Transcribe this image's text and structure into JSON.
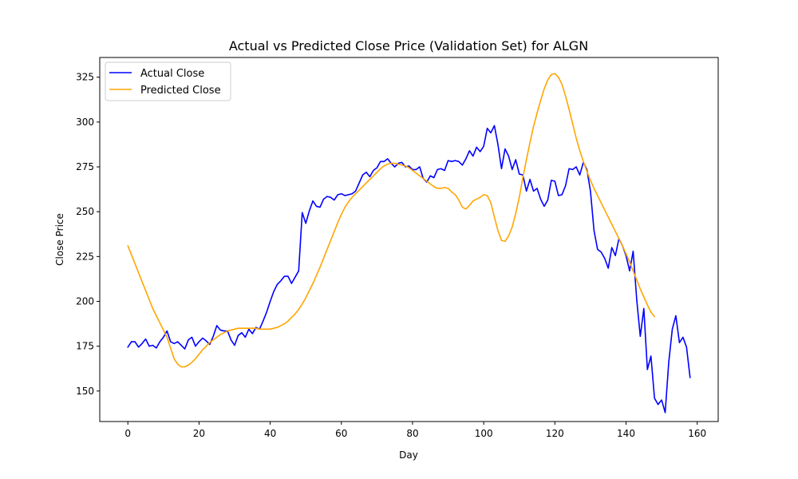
{
  "chart_data": {
    "type": "line",
    "title": "Actual vs Predicted Close Price (Validation Set) for ALGN",
    "xlabel": "Day",
    "ylabel": "Close Price",
    "xlim": [
      -7.9,
      165.9
    ],
    "ylim": [
      133,
      336
    ],
    "xticks": [
      0,
      20,
      40,
      60,
      80,
      100,
      120,
      140,
      160
    ],
    "yticks": [
      150,
      175,
      200,
      225,
      250,
      275,
      300,
      325
    ],
    "grid": false,
    "legend_position": "top-left",
    "series": [
      {
        "name": "Actual Close",
        "color": "#0000ff",
        "values": [
          174.5,
          177.5,
          177.5,
          174.5,
          176.5,
          179,
          175,
          175.5,
          174,
          177.5,
          180,
          183.5,
          177.5,
          176.5,
          177.5,
          175.5,
          173.5,
          178.5,
          180,
          175,
          177.5,
          179.5,
          178,
          176,
          180.5,
          186.5,
          184,
          183.5,
          183.5,
          178.5,
          175.5,
          181,
          182.5,
          180,
          184.5,
          182,
          185.5,
          184.5,
          189,
          194,
          200,
          205.5,
          209.5,
          211.5,
          214,
          214,
          210,
          213.5,
          217,
          249.5,
          243.5,
          250.5,
          256,
          253,
          252.5,
          257,
          258.5,
          258,
          256.5,
          259.5,
          260,
          259,
          259.5,
          260,
          261.5,
          266,
          270.5,
          272,
          269.5,
          273,
          274.5,
          278,
          278,
          279.5,
          277,
          275,
          277,
          277.5,
          275,
          275.5,
          273.5,
          273.5,
          275,
          268.5,
          266.5,
          270,
          269,
          273.5,
          274,
          273,
          278.5,
          278,
          278.5,
          278,
          276,
          279.5,
          284,
          281,
          286,
          283.5,
          286.5,
          296.5,
          294,
          298,
          287.5,
          274,
          285,
          281,
          273.5,
          279,
          271,
          270.5,
          261.5,
          268,
          261.5,
          263,
          257,
          253,
          256.5,
          267.5,
          267,
          259,
          259.5,
          264.5,
          274,
          273.5,
          275,
          270.5,
          277.5,
          273.5,
          261.5,
          239.5,
          229,
          227.5,
          224,
          218.5,
          230,
          225.5,
          235,
          231,
          225.5,
          217,
          228,
          201,
          180.5,
          196,
          162,
          169.5,
          146,
          142.5,
          145,
          138,
          166,
          184.5,
          192,
          177,
          180,
          174.5,
          157.5
        ]
      },
      {
        "name": "Predicted Close",
        "color": "#ffa500",
        "values": [
          231,
          226,
          221,
          216,
          211,
          206,
          201,
          196,
          192,
          188,
          184,
          180,
          174,
          168,
          165,
          163.5,
          163.5,
          164.5,
          166,
          168,
          170.5,
          173,
          175,
          177,
          178.5,
          180,
          181.5,
          182.5,
          183.5,
          184,
          184.5,
          185,
          185,
          185,
          185,
          185,
          185,
          184.5,
          184.5,
          184.5,
          184.5,
          185,
          185.5,
          186.5,
          187.5,
          189,
          191,
          193,
          195.5,
          198.5,
          202,
          206,
          210,
          214.5,
          219,
          224,
          229,
          234,
          239,
          244,
          248.5,
          252.5,
          255.5,
          258,
          260,
          262,
          264,
          266,
          268,
          270,
          272,
          274,
          275.5,
          276.5,
          277,
          277,
          276.5,
          276,
          275.5,
          274.5,
          273,
          271.5,
          270,
          268.5,
          267,
          265.5,
          264,
          263,
          263,
          263.5,
          263,
          261,
          259.5,
          256.5,
          252.5,
          251.5,
          253.5,
          256,
          257,
          258,
          259.5,
          259,
          255,
          247,
          239.5,
          234,
          233.5,
          236.5,
          241.5,
          249,
          258,
          269,
          279,
          288.5,
          297.5,
          305,
          312,
          318.5,
          323.5,
          326.5,
          327,
          325,
          321,
          314.5,
          307,
          299,
          291,
          284,
          278,
          272.5,
          267.5,
          263,
          259,
          255,
          251,
          247,
          243,
          239,
          235,
          231,
          226.5,
          222,
          217,
          212,
          207,
          202.5,
          198,
          194,
          191.5
        ]
      }
    ]
  }
}
